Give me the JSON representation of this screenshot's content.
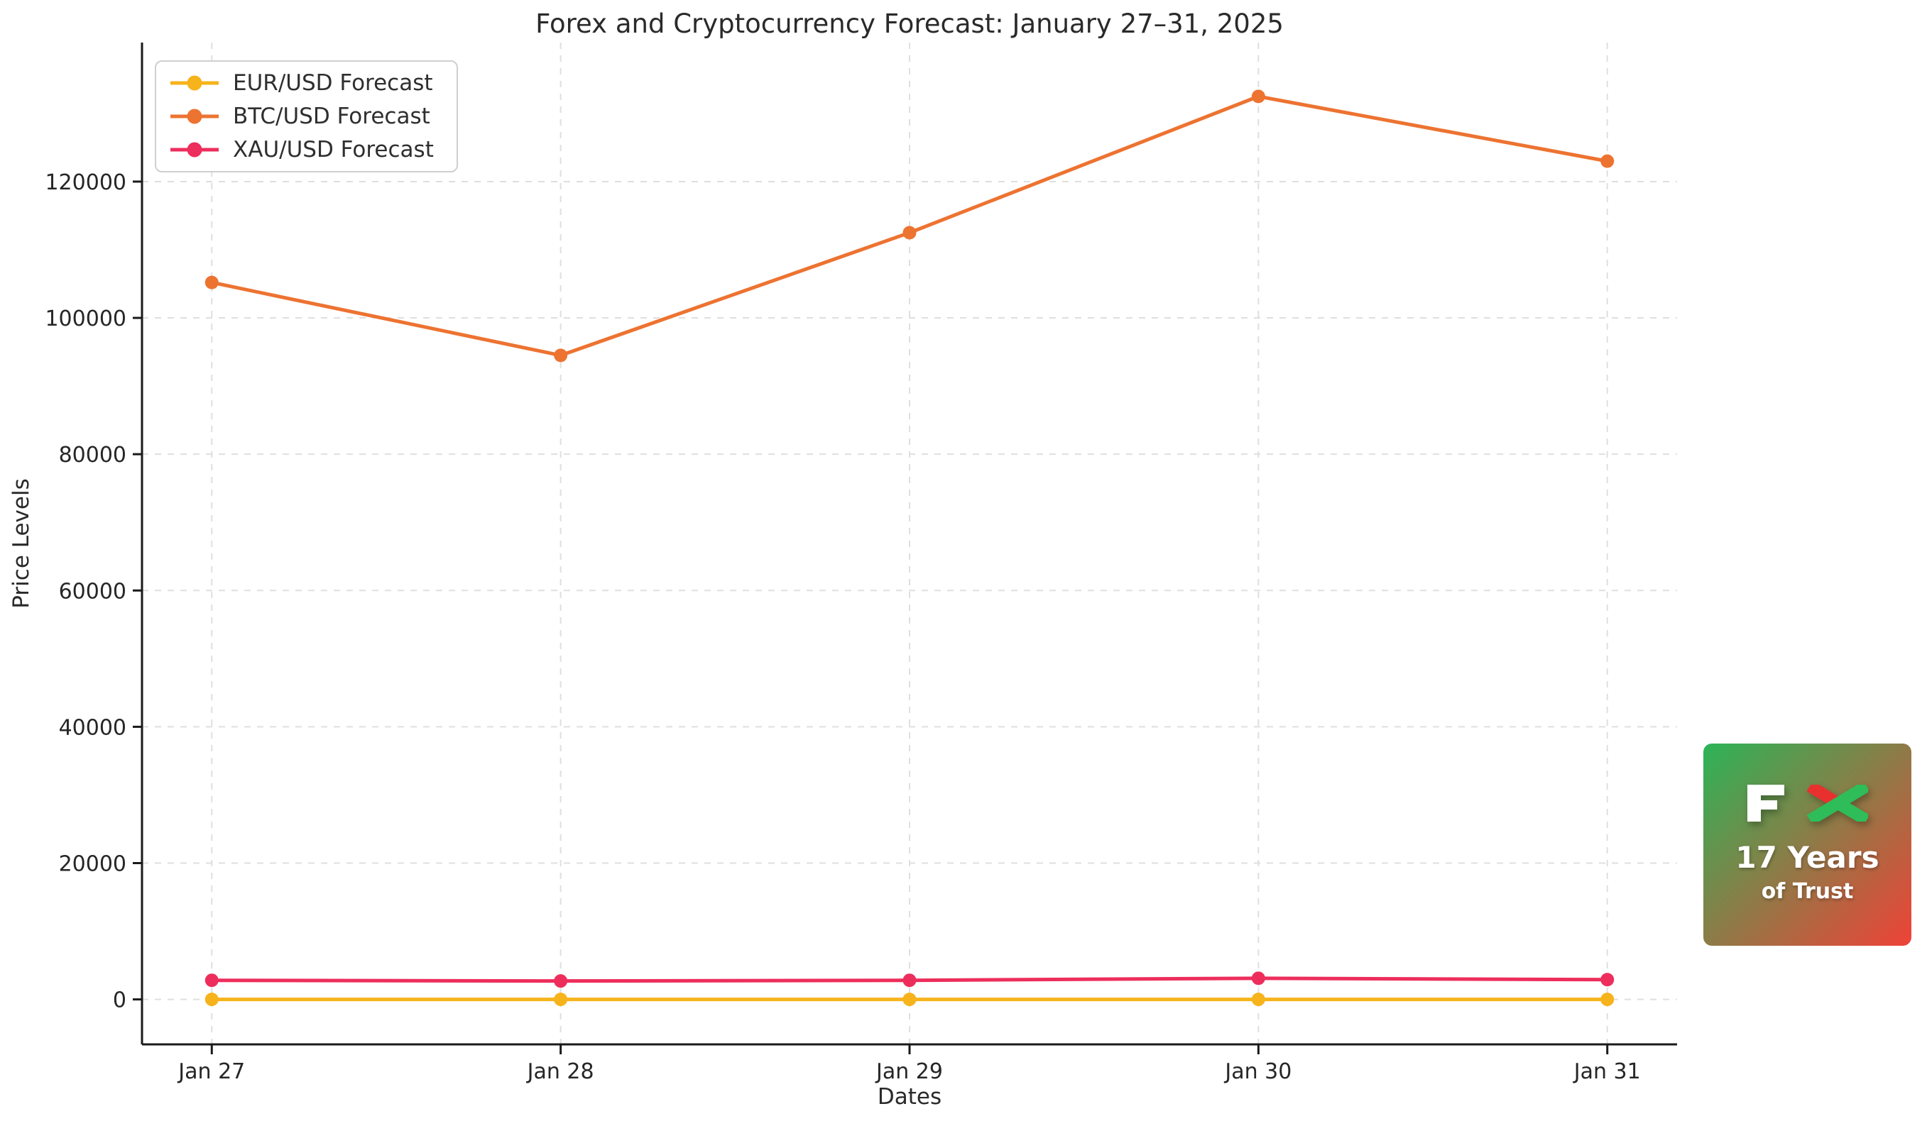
{
  "title": "Forex and Cryptocurrency Forecast: January 27–31, 2025",
  "chart_data": {
    "type": "line",
    "categories": [
      "Jan 27",
      "Jan 28",
      "Jan 29",
      "Jan 30",
      "Jan 31"
    ],
    "series": [
      {
        "name": "EUR/USD Forecast",
        "color": "#F6B31B",
        "values": [
          1.04,
          1.04,
          1.04,
          1.04,
          1.04
        ]
      },
      {
        "name": "BTC/USD Forecast",
        "color": "#ED7331",
        "values": [
          105200,
          94500,
          112500,
          132500,
          123000
        ]
      },
      {
        "name": "XAU/USD Forecast",
        "color": "#ED2E5C",
        "values": [
          2800,
          2700,
          2800,
          3100,
          2900
        ]
      }
    ],
    "xlabel": "Dates",
    "ylabel": "Price Levels",
    "ylim": [
      -6600,
      140400
    ],
    "yticks": [
      0,
      20000,
      40000,
      60000,
      80000,
      100000,
      120000
    ],
    "grid": true,
    "legend_position": "upper left"
  },
  "colors": {
    "grid": "#DFDFDF",
    "spine": "#1a1a1a",
    "text": "#262626"
  },
  "logo": {
    "fx": "FX",
    "line1": "17 Years",
    "line2": "of Trust",
    "gradient_from": "#2cb457",
    "gradient_to": "#ef4237",
    "x_red": "#E8312F",
    "x_green": "#2EBD59"
  }
}
